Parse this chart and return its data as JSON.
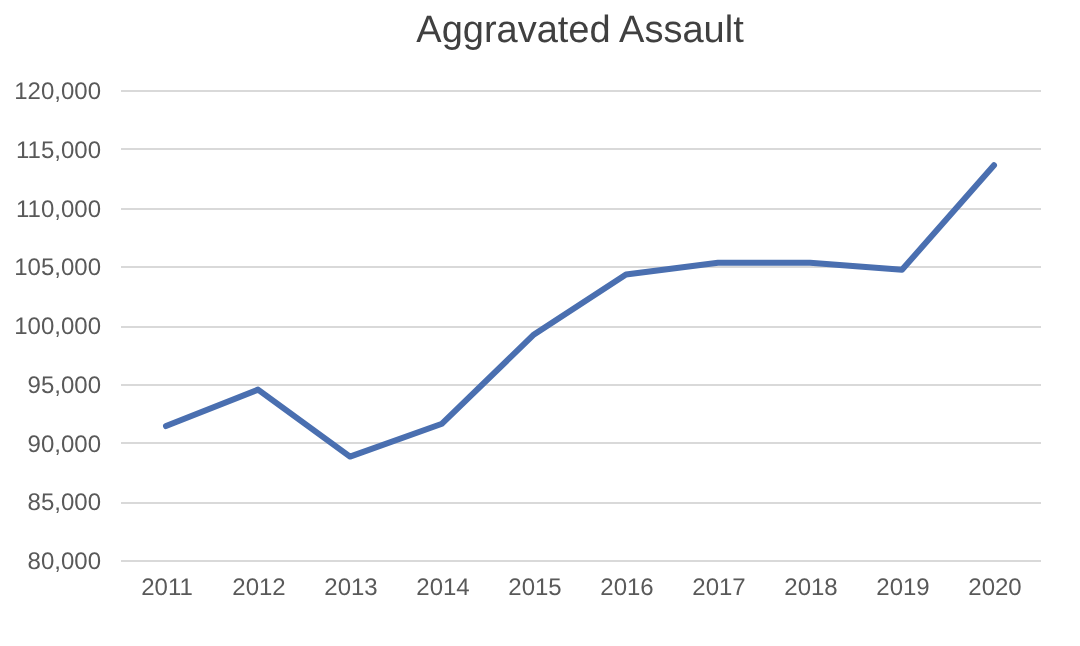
{
  "chart_data": {
    "type": "line",
    "title": "Aggravated Assault",
    "categories": [
      "2011",
      "2012",
      "2013",
      "2014",
      "2015",
      "2016",
      "2017",
      "2018",
      "2019",
      "2020"
    ],
    "series": [
      {
        "color": "#4a6fb0",
        "values": [
          91400,
          94500,
          88800,
          91600,
          99200,
          104300,
          105300,
          105300,
          104700,
          113600
        ]
      }
    ],
    "ylim": [
      80000,
      120000
    ],
    "yticks": [
      {
        "value": 80000,
        "label": "80,000"
      },
      {
        "value": 85000,
        "label": "85,000"
      },
      {
        "value": 90000,
        "label": "90,000"
      },
      {
        "value": 95000,
        "label": "95,000"
      },
      {
        "value": 100000,
        "label": "100,000"
      },
      {
        "value": 105000,
        "label": "105,000"
      },
      {
        "value": 110000,
        "label": "110,000"
      },
      {
        "value": 115000,
        "label": "115,000"
      },
      {
        "value": 120000,
        "label": "120,000"
      }
    ],
    "grid": "y",
    "legend": false
  }
}
